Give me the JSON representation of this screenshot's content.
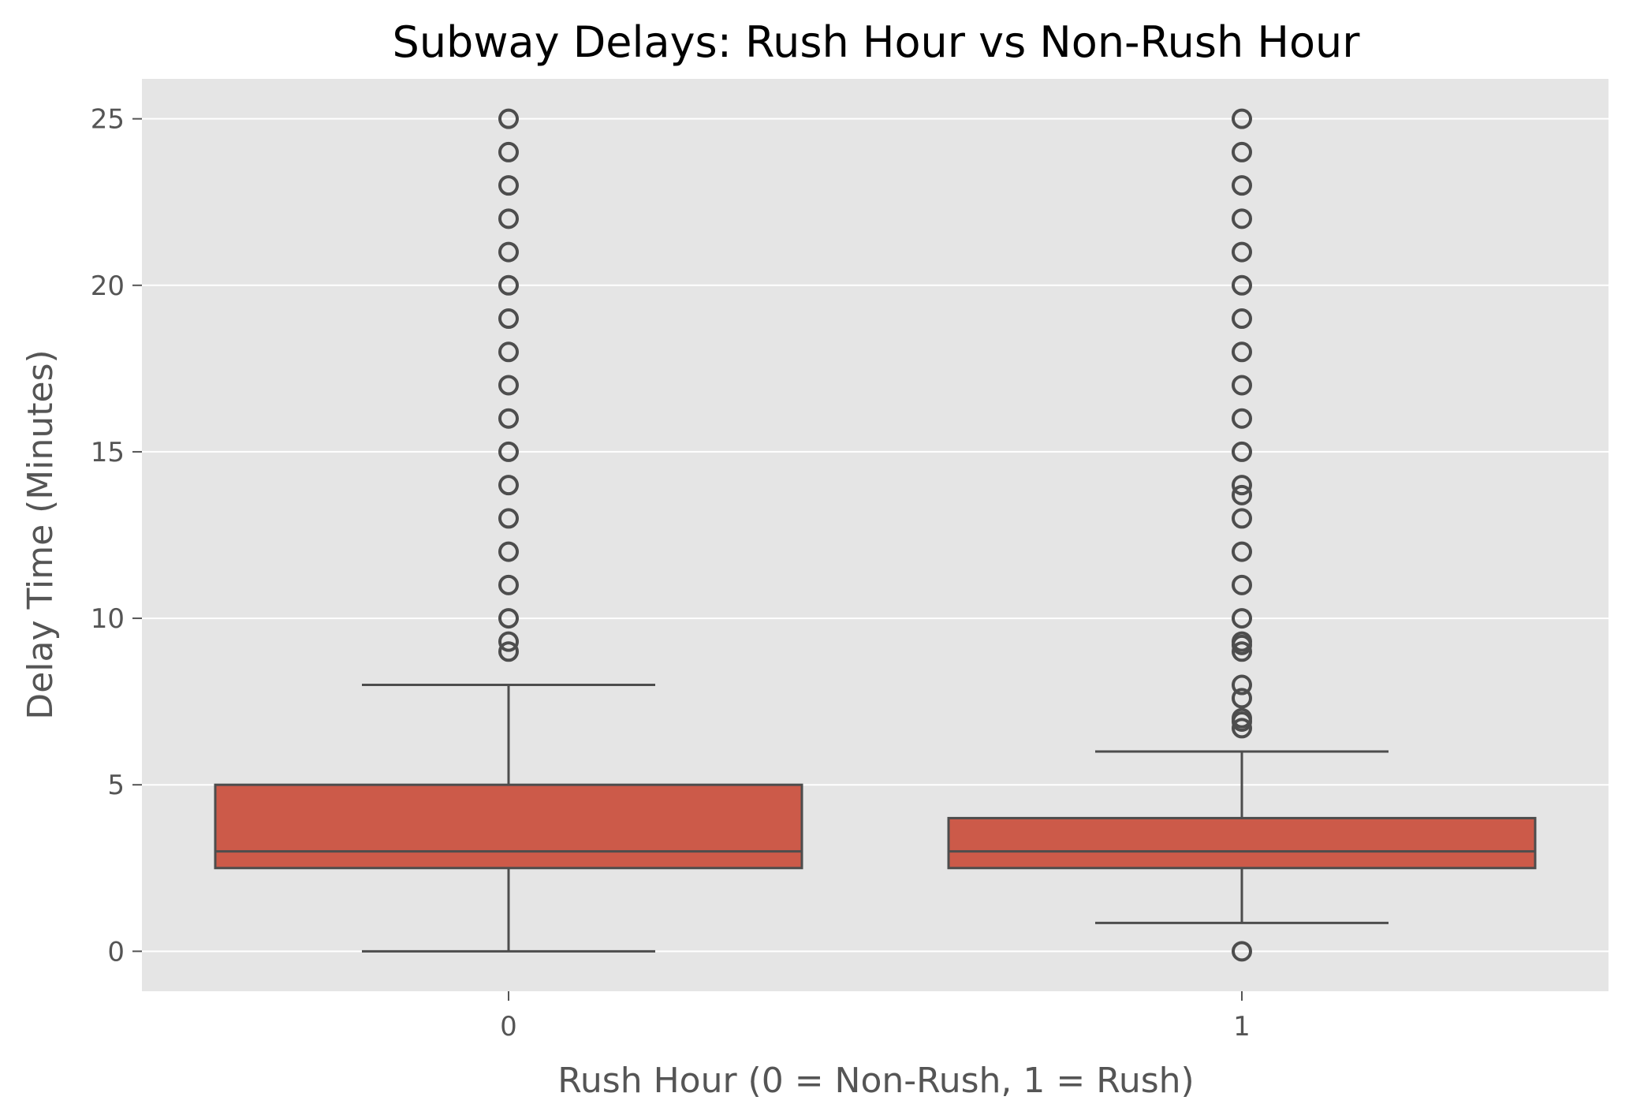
{
  "chart_data": {
    "type": "box",
    "title": "Subway Delays: Rush Hour vs Non-Rush Hour",
    "xlabel": "Rush Hour (0 = Non-Rush, 1 = Rush)",
    "ylabel": "Delay Time (Minutes)",
    "categories": [
      "0",
      "1"
    ],
    "ylim": [
      -1.2,
      26.2
    ],
    "yticks": [
      0,
      5,
      10,
      15,
      20,
      25
    ],
    "grid": true,
    "colors": {
      "background": "#e5e5e5",
      "box_fill": "#cc5a49",
      "line": "#4d4d4d",
      "grid": "#ffffff",
      "text": "#555555"
    },
    "boxes": [
      {
        "category": "0",
        "whisker_low": 0,
        "q1": 2.5,
        "median": 3,
        "q3": 5,
        "whisker_high": 8,
        "outliers": [
          9,
          9.3,
          10,
          11,
          12,
          13,
          14,
          15,
          16,
          17,
          18,
          19,
          20,
          21,
          22,
          23,
          24,
          25
        ]
      },
      {
        "category": "1",
        "whisker_low": 0.85,
        "q1": 2.5,
        "median": 3,
        "q3": 4,
        "whisker_high": 6,
        "outliers": [
          0,
          6.7,
          6.9,
          7,
          7.6,
          8,
          9,
          9.2,
          9.3,
          10,
          11,
          12,
          13,
          13.7,
          14,
          15,
          16,
          17,
          18,
          19,
          20,
          21,
          22,
          23,
          24,
          25
        ]
      }
    ]
  }
}
